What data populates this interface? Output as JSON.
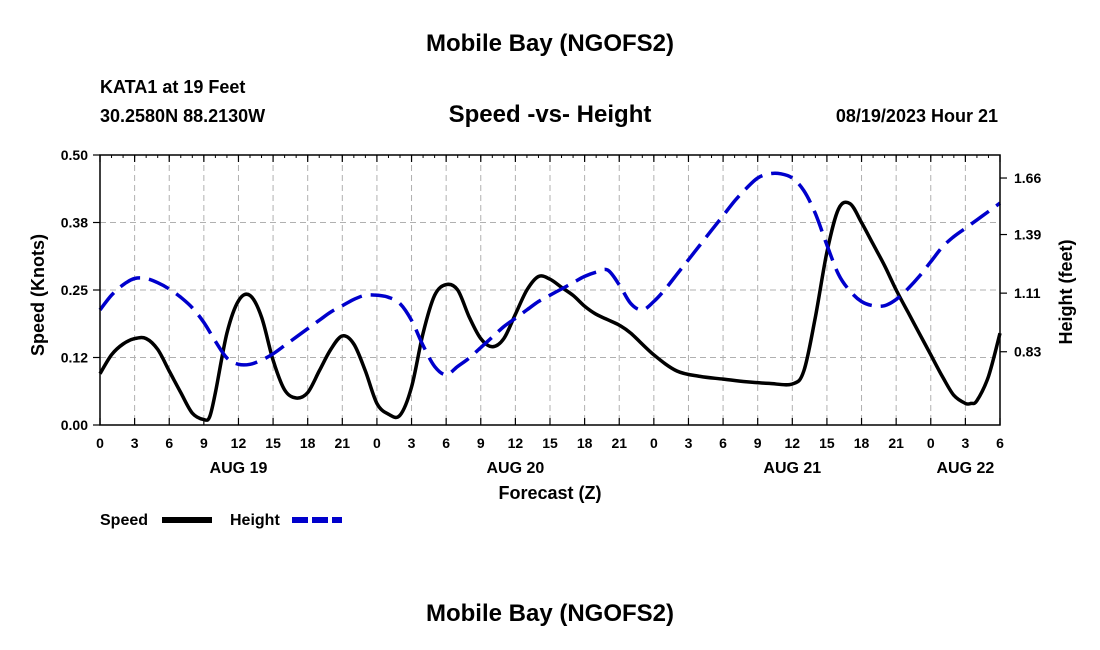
{
  "page": {
    "title": "Mobile Bay (NGOFS2)",
    "bottom_title": "Mobile Bay (NGOFS2)",
    "station": "KATA1 at 19 Feet",
    "coords": "30.2580N  88.2130W",
    "subtitle": "Speed -vs- Height",
    "timestamp": "08/19/2023 Hour 21"
  },
  "chart_data": {
    "type": "line",
    "title": "Speed -vs- Height",
    "xlabel": "Forecast (Z)",
    "ylabel": "Speed (Knots)",
    "y2label": "Height (feet)",
    "x_range_hours": [
      0,
      78
    ],
    "ylim": [
      0,
      0.5
    ],
    "y2lim": [
      0.48,
      1.77
    ],
    "grid": true,
    "x_ticks": [
      {
        "h": 0,
        "label": "0"
      },
      {
        "h": 3,
        "label": "3"
      },
      {
        "h": 6,
        "label": "6"
      },
      {
        "h": 9,
        "label": "9"
      },
      {
        "h": 12,
        "label": "12"
      },
      {
        "h": 15,
        "label": "15"
      },
      {
        "h": 18,
        "label": "18"
      },
      {
        "h": 21,
        "label": "21"
      },
      {
        "h": 24,
        "label": "0"
      },
      {
        "h": 27,
        "label": "3"
      },
      {
        "h": 30,
        "label": "6"
      },
      {
        "h": 33,
        "label": "9"
      },
      {
        "h": 36,
        "label": "12"
      },
      {
        "h": 39,
        "label": "15"
      },
      {
        "h": 42,
        "label": "18"
      },
      {
        "h": 45,
        "label": "21"
      },
      {
        "h": 48,
        "label": "0"
      },
      {
        "h": 51,
        "label": "3"
      },
      {
        "h": 54,
        "label": "6"
      },
      {
        "h": 57,
        "label": "9"
      },
      {
        "h": 60,
        "label": "12"
      },
      {
        "h": 63,
        "label": "15"
      },
      {
        "h": 66,
        "label": "18"
      },
      {
        "h": 69,
        "label": "21"
      },
      {
        "h": 72,
        "label": "0"
      },
      {
        "h": 75,
        "label": "3"
      },
      {
        "h": 78,
        "label": "6"
      }
    ],
    "day_labels": [
      {
        "h": 12,
        "label": "AUG 19"
      },
      {
        "h": 36,
        "label": "AUG 20"
      },
      {
        "h": 60,
        "label": "AUG 21"
      },
      {
        "h": 75,
        "label": "AUG 22"
      }
    ],
    "y_ticks": [
      {
        "value": 0.0,
        "label": "0.00"
      },
      {
        "value": 0.125,
        "label": "0.12"
      },
      {
        "value": 0.25,
        "label": "0.25"
      },
      {
        "value": 0.375,
        "label": "0.38"
      },
      {
        "value": 0.5,
        "label": "0.50"
      }
    ],
    "y2_ticks": [
      {
        "value": 0.83,
        "label": "0.83"
      },
      {
        "value": 1.11,
        "label": "1.11"
      },
      {
        "value": 1.39,
        "label": "1.39"
      },
      {
        "value": 1.66,
        "label": "1.66"
      }
    ],
    "legend": [
      {
        "name": "Speed",
        "color": "#000000",
        "style": "solid"
      },
      {
        "name": "Height",
        "color": "#0000cc",
        "style": "dashed"
      }
    ],
    "series": [
      {
        "name": "Speed",
        "axis": "left",
        "color": "#000000",
        "style": "solid",
        "x": [
          0,
          1,
          2,
          3,
          4,
          5,
          6,
          7,
          8,
          9,
          9.5,
          10,
          11,
          12,
          13,
          14,
          15,
          16,
          17,
          18,
          19,
          20,
          21,
          22,
          23,
          24,
          25,
          26,
          27,
          28,
          29,
          30,
          31,
          32,
          33,
          34,
          35,
          36,
          37,
          38,
          39,
          40,
          41,
          42,
          43,
          44,
          45,
          46,
          48,
          50,
          52,
          54,
          56,
          58,
          60,
          61,
          62,
          63,
          64,
          65,
          66,
          67,
          68,
          69,
          70,
          71,
          72,
          73,
          74,
          75,
          75.5,
          76,
          77,
          78
        ],
        "values": [
          0.095,
          0.13,
          0.15,
          0.16,
          0.16,
          0.14,
          0.1,
          0.06,
          0.022,
          0.01,
          0.015,
          0.06,
          0.17,
          0.23,
          0.24,
          0.2,
          0.12,
          0.065,
          0.05,
          0.06,
          0.1,
          0.14,
          0.165,
          0.15,
          0.1,
          0.04,
          0.02,
          0.018,
          0.07,
          0.17,
          0.24,
          0.26,
          0.25,
          0.2,
          0.16,
          0.145,
          0.16,
          0.205,
          0.25,
          0.275,
          0.27,
          0.255,
          0.24,
          0.22,
          0.205,
          0.195,
          0.185,
          0.17,
          0.13,
          0.1,
          0.09,
          0.085,
          0.08,
          0.077,
          0.076,
          0.1,
          0.2,
          0.32,
          0.4,
          0.41,
          0.375,
          0.335,
          0.295,
          0.25,
          0.21,
          0.17,
          0.13,
          0.09,
          0.055,
          0.04,
          0.04,
          0.045,
          0.09,
          0.17
        ]
      },
      {
        "name": "Height",
        "axis": "right",
        "color": "#0000cc",
        "style": "dashed",
        "x": [
          0,
          1,
          2,
          3,
          4,
          5,
          6,
          7,
          8,
          9,
          10,
          11,
          12,
          13,
          14,
          15,
          16,
          17,
          18,
          19,
          20,
          21,
          22,
          23,
          24,
          25,
          26,
          27,
          28,
          29,
          30,
          31,
          32,
          33,
          34,
          35,
          36,
          37,
          38,
          39,
          40,
          41,
          42,
          43,
          44,
          45,
          46,
          47,
          48,
          49,
          50,
          51,
          52,
          53,
          54,
          55,
          56,
          57,
          58,
          59,
          60,
          61,
          62,
          63,
          64,
          65,
          66,
          67,
          68,
          69,
          70,
          71,
          72,
          73,
          74,
          75,
          76,
          77,
          78
        ],
        "values": [
          1.03,
          1.1,
          1.15,
          1.18,
          1.18,
          1.16,
          1.13,
          1.09,
          1.04,
          0.97,
          0.88,
          0.8,
          0.77,
          0.77,
          0.79,
          0.82,
          0.86,
          0.9,
          0.94,
          0.98,
          1.02,
          1.05,
          1.08,
          1.1,
          1.1,
          1.09,
          1.06,
          0.98,
          0.86,
          0.76,
          0.72,
          0.76,
          0.8,
          0.85,
          0.9,
          0.95,
          0.99,
          1.03,
          1.07,
          1.1,
          1.13,
          1.16,
          1.19,
          1.21,
          1.22,
          1.15,
          1.06,
          1.03,
          1.07,
          1.13,
          1.2,
          1.27,
          1.34,
          1.41,
          1.48,
          1.55,
          1.61,
          1.66,
          1.68,
          1.68,
          1.66,
          1.6,
          1.49,
          1.34,
          1.2,
          1.12,
          1.07,
          1.05,
          1.05,
          1.08,
          1.13,
          1.19,
          1.26,
          1.33,
          1.38,
          1.42,
          1.46,
          1.5,
          1.54
        ]
      }
    ]
  }
}
